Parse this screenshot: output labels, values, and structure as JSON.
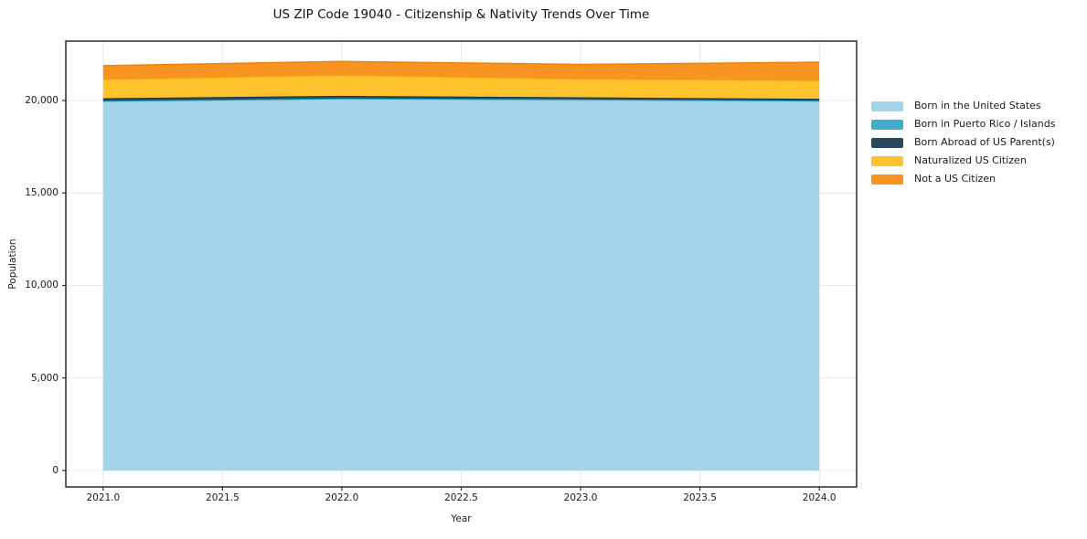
{
  "colors": {
    "background": "#ffffff",
    "text": "#1a1a1a",
    "grid": "#e9e9e9",
    "spine": "#2b2b2b"
  },
  "chart_data": {
    "type": "area",
    "stacked": true,
    "title": "US ZIP Code 19040 - Citizenship & Nativity Trends Over Time",
    "xlabel": "Year",
    "ylabel": "Population",
    "grid": true,
    "legend_position": "right of plot",
    "x": [
      2021,
      2022,
      2023,
      2024
    ],
    "x_ticks": [
      "2021.0",
      "2021.5",
      "2022.0",
      "2022.5",
      "2023.0",
      "2023.5",
      "2024.0"
    ],
    "x_tick_values": [
      2021,
      2021.5,
      2022,
      2022.5,
      2023,
      2023.5,
      2024
    ],
    "y_ticks": [
      "0",
      "5,000",
      "10,000",
      "15,000",
      "20,000"
    ],
    "y_tick_values": [
      0,
      5000,
      10000,
      15000,
      20000
    ],
    "xlim": [
      2020.8436,
      2024.1564
    ],
    "ylim": [
      -890,
      23210
    ],
    "series": [
      {
        "name": "Born in the United States",
        "fill": "#a3d4ea",
        "edge": "#8ecae6",
        "values": [
          19930,
          20060,
          20010,
          19940
        ]
      },
      {
        "name": "Born in Puerto Rico / Islands",
        "fill": "#42acc6",
        "edge": "#219ebc",
        "values": [
          50,
          50,
          50,
          50
        ]
      },
      {
        "name": "Born Abroad of US Parent(s)",
        "fill": "#28495e",
        "edge": "#023047",
        "values": [
          140,
          140,
          110,
          100
        ]
      },
      {
        "name": "Naturalized US Citizen",
        "fill": "#ffc32e",
        "edge": "#f5ae06",
        "values": [
          1020,
          1120,
          990,
          990
        ]
      },
      {
        "name": "Not a US Citizen",
        "fill": "#f89422",
        "edge": "#ef8208",
        "values": [
          740,
          740,
          790,
          990
        ]
      }
    ],
    "totals_by_year": [
      21880,
      22110,
      21950,
      22070
    ]
  }
}
